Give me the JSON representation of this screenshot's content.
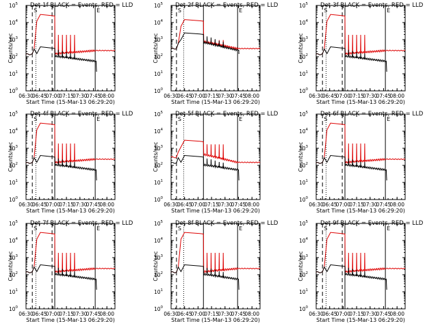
{
  "figure": {
    "x_axis_label": "Start Time (15-Mar-13 06:29:20)",
    "y_axis_label": "Counts/sec",
    "x_tick_labels": [
      "06:30",
      "06:45",
      "07:00",
      "07:15",
      "07:30",
      "07:45",
      "08:00"
    ],
    "y_tick_labels": [
      {
        "base": "10",
        "exp": "0"
      },
      {
        "base": "10",
        "exp": "1"
      },
      {
        "base": "10",
        "exp": "2"
      },
      {
        "base": "10",
        "exp": "3"
      },
      {
        "base": "10",
        "exp": "4"
      },
      {
        "base": "10",
        "exp": "5"
      }
    ],
    "marker_labels": [
      "S",
      "E"
    ],
    "colors": {
      "events": "#000000",
      "lld": "#dd0000",
      "axes": "#000000",
      "background": "#ffffff"
    }
  },
  "chart_data": [
    {
      "type": "line",
      "title": "Det-1f BLACK = Events, RED = LLD",
      "xlim": [
        "06:30",
        "08:09"
      ],
      "ylim_log10": [
        0,
        5
      ],
      "y_scale": "log",
      "series": [
        {
          "name": "Events",
          "color": "#000000"
        },
        {
          "name": "LLD",
          "color": "#dd0000"
        }
      ],
      "events": {
        "pre": 140,
        "peak": 380,
        "post_start": 110,
        "post_end": 55,
        "end_level": 22
      },
      "lld": {
        "pre": 140,
        "peak": 30000,
        "post_start": 150,
        "post_end": 230
      },
      "spike_peaks": [
        1900,
        1900,
        1900,
        1900,
        1900
      ],
      "vlines": {
        "dashed": [
          "06:37",
          "06:59"
        ],
        "dotted": [
          "06:41"
        ],
        "solid": [
          "07:02",
          "07:47"
        ]
      }
    },
    {
      "type": "line",
      "title": "Det-2f BLACK = Events, RED = LLD",
      "xlim": [
        "06:30",
        "08:09"
      ],
      "ylim_log10": [
        0,
        5
      ],
      "y_scale": "log",
      "series": [
        {
          "name": "Events",
          "color": "#000000"
        },
        {
          "name": "LLD",
          "color": "#dd0000"
        }
      ],
      "events": {
        "pre": 300,
        "peak": 2500,
        "post_start": 700,
        "post_end": 240,
        "end_level": 240
      },
      "lld": {
        "pre": 300,
        "peak": 15000,
        "post_start": 800,
        "post_end": 300
      },
      "spike_peaks": [
        950,
        950,
        950,
        950,
        950
      ],
      "vlines": {
        "dashed": [
          "06:36"
        ],
        "dotted": [
          "06:44"
        ],
        "solid": [
          "07:06",
          "07:44"
        ]
      }
    },
    {
      "type": "line",
      "title": "Det-3f BLACK = Events, RED = LLD",
      "xlim": [
        "06:30",
        "08:09"
      ],
      "ylim_log10": [
        0,
        5
      ],
      "y_scale": "log",
      "series": [
        {
          "name": "Events",
          "color": "#000000"
        },
        {
          "name": "LLD",
          "color": "#dd0000"
        }
      ],
      "events": {
        "pre": 140,
        "peak": 380,
        "post_start": 110,
        "post_end": 55,
        "end_level": 22
      },
      "lld": {
        "pre": 140,
        "peak": 30000,
        "post_start": 150,
        "post_end": 230
      },
      "spike_peaks": [
        1900,
        1900,
        1900,
        1900,
        1900
      ],
      "vlines": {
        "dashed": [
          "06:37",
          "06:59"
        ],
        "dotted": [
          "06:41"
        ],
        "solid": [
          "07:02",
          "07:47"
        ]
      }
    },
    {
      "type": "line",
      "title": "Det-4f BLACK = Events, RED = LLD",
      "xlim": [
        "06:30",
        "08:09"
      ],
      "ylim_log10": [
        0,
        5
      ],
      "y_scale": "log",
      "series": [
        {
          "name": "Events",
          "color": "#000000"
        },
        {
          "name": "LLD",
          "color": "#dd0000"
        }
      ],
      "events": {
        "pre": 140,
        "peak": 380,
        "post_start": 110,
        "post_end": 55,
        "end_level": 22
      },
      "lld": {
        "pre": 140,
        "peak": 30000,
        "post_start": 150,
        "post_end": 230
      },
      "spike_peaks": [
        1900,
        1900,
        1900,
        1900,
        1900
      ],
      "vlines": {
        "dashed": [
          "06:37",
          "06:59"
        ],
        "dotted": [
          "06:41"
        ],
        "solid": [
          "07:02",
          "07:47"
        ]
      }
    },
    {
      "type": "line",
      "title": "Det-5f BLACK = Events, RED = LLD",
      "xlim": [
        "06:30",
        "08:09"
      ],
      "ylim_log10": [
        0,
        5
      ],
      "y_scale": "log",
      "series": [
        {
          "name": "Events",
          "color": "#000000"
        },
        {
          "name": "LLD",
          "color": "#dd0000"
        }
      ],
      "events": {
        "pre": 140,
        "peak": 380,
        "post_start": 110,
        "post_end": 55,
        "end_level": 22
      },
      "lld": {
        "pre": 300,
        "peak": 3000,
        "post_start": 450,
        "post_end": 150
      },
      "spike_peaks": [
        1700,
        1700,
        1700,
        1700,
        1700
      ],
      "vlines": {
        "dashed": [
          "06:36"
        ],
        "dotted": [
          "06:44"
        ],
        "solid": [
          "07:06",
          "07:44"
        ]
      }
    },
    {
      "type": "line",
      "title": "Det-6f BLACK = Events, RED = LLD",
      "xlim": [
        "06:30",
        "08:09"
      ],
      "ylim_log10": [
        0,
        5
      ],
      "y_scale": "log",
      "series": [
        {
          "name": "Events",
          "color": "#000000"
        },
        {
          "name": "LLD",
          "color": "#dd0000"
        }
      ],
      "events": {
        "pre": 140,
        "peak": 380,
        "post_start": 110,
        "post_end": 55,
        "end_level": 22
      },
      "lld": {
        "pre": 140,
        "peak": 30000,
        "post_start": 150,
        "post_end": 230
      },
      "spike_peaks": [
        1900,
        1900,
        1900,
        1900,
        1900
      ],
      "vlines": {
        "dashed": [
          "06:37",
          "06:59"
        ],
        "dotted": [
          "06:41"
        ],
        "solid": [
          "07:02",
          "07:47"
        ]
      }
    },
    {
      "type": "line",
      "title": "Det-7f BLACK = Events, RED = LLD",
      "xlim": [
        "06:30",
        "08:09"
      ],
      "ylim_log10": [
        0,
        5
      ],
      "y_scale": "log",
      "series": [
        {
          "name": "Events",
          "color": "#000000"
        },
        {
          "name": "LLD",
          "color": "#dd0000"
        }
      ],
      "events": {
        "pre": 140,
        "peak": 380,
        "post_start": 110,
        "post_end": 55,
        "end_level": 22
      },
      "lld": {
        "pre": 140,
        "peak": 30000,
        "post_start": 150,
        "post_end": 230
      },
      "spike_peaks": [
        1900,
        1900,
        1900,
        1900,
        1900
      ],
      "vlines": {
        "dashed": [
          "06:37",
          "06:59"
        ],
        "dotted": [
          "06:41"
        ],
        "solid": [
          "07:02",
          "07:47"
        ]
      }
    },
    {
      "type": "line",
      "title": "Det-8f BLACK = Events, RED = LLD",
      "xlim": [
        "06:30",
        "08:09"
      ],
      "ylim_log10": [
        0,
        5
      ],
      "y_scale": "log",
      "series": [
        {
          "name": "Events",
          "color": "#000000"
        },
        {
          "name": "LLD",
          "color": "#dd0000"
        }
      ],
      "events": {
        "pre": 140,
        "peak": 380,
        "post_start": 110,
        "post_end": 55,
        "end_level": 22
      },
      "lld": {
        "pre": 140,
        "peak": 30000,
        "post_start": 150,
        "post_end": 230
      },
      "spike_peaks": [
        1900,
        1900,
        1900,
        1900,
        1900
      ],
      "vlines": {
        "dashed": [
          "06:36"
        ],
        "dotted": [
          "06:44"
        ],
        "solid": [
          "07:06",
          "07:44"
        ]
      }
    },
    {
      "type": "line",
      "title": "Det-9f BLACK = Events, RED = LLD",
      "xlim": [
        "06:30",
        "08:09"
      ],
      "ylim_log10": [
        0,
        5
      ],
      "y_scale": "log",
      "series": [
        {
          "name": "Events",
          "color": "#000000"
        },
        {
          "name": "LLD",
          "color": "#dd0000"
        }
      ],
      "events": {
        "pre": 140,
        "peak": 380,
        "post_start": 110,
        "post_end": 55,
        "end_level": 22
      },
      "lld": {
        "pre": 140,
        "peak": 30000,
        "post_start": 150,
        "post_end": 230
      },
      "spike_peaks": [
        1900,
        1900,
        1900,
        1900,
        1900
      ],
      "vlines": {
        "dashed": [
          "06:37",
          "06:59"
        ],
        "dotted": [
          "06:41"
        ],
        "solid": [
          "07:02",
          "07:47"
        ]
      }
    }
  ]
}
